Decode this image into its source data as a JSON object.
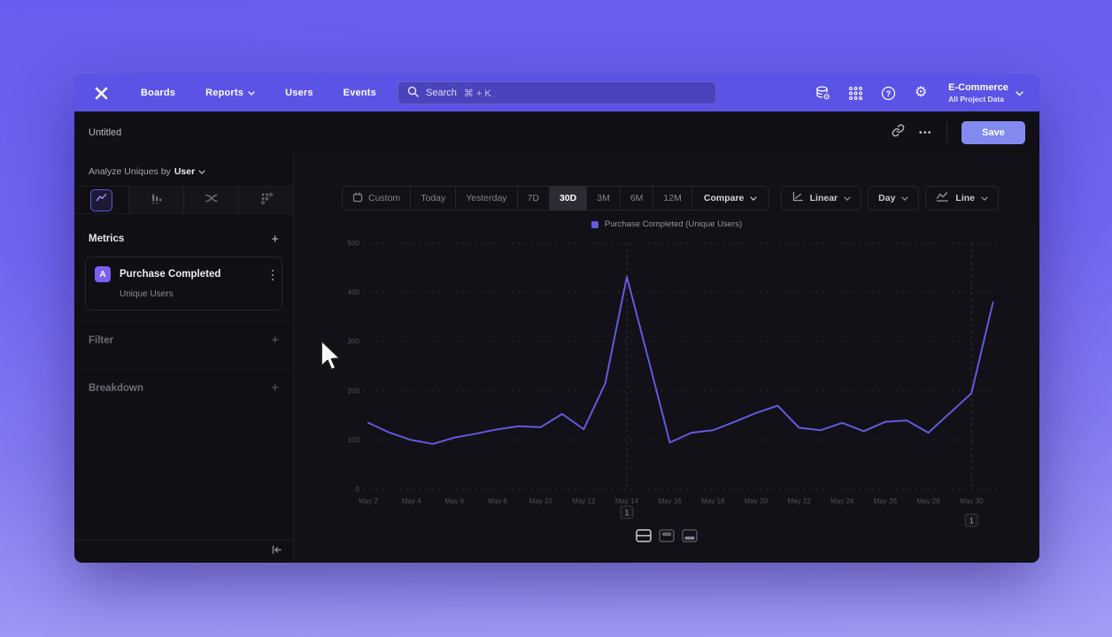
{
  "nav": {
    "items": [
      {
        "label": "Boards"
      },
      {
        "label": "Reports"
      },
      {
        "label": "Users"
      },
      {
        "label": "Events"
      }
    ],
    "search_placeholder": "Search",
    "search_shortcut": "⌘ + K",
    "project_name": "E-Commerce",
    "project_scope": "All Project Data"
  },
  "header": {
    "title": "Untitled",
    "more_label": "•••",
    "save_label": "Save"
  },
  "sidebar": {
    "analyze_prefix": "Analyze Uniques by",
    "analyze_value": "User",
    "metrics_label": "Metrics",
    "metrics_add": "+",
    "metric": {
      "badge": "A",
      "event": "Purchase Completed",
      "measure": "Unique Users"
    },
    "filter_label": "Filter",
    "filter_add": "+",
    "breakdown_label": "Breakdown",
    "breakdown_add": "+"
  },
  "toolbar": {
    "ranges": [
      "Custom",
      "Today",
      "Yesterday",
      "7D",
      "30D",
      "3M",
      "6M",
      "12M"
    ],
    "selected_range": "30D",
    "compare_label": "Compare",
    "scale_label": "Linear",
    "granularity_label": "Day",
    "chart_type_label": "Line"
  },
  "chart_data": {
    "type": "line",
    "legend": "Purchase Completed (Unique Users)",
    "line_color": "#6459dd",
    "x": [
      "May 2",
      "May 3",
      "May 4",
      "May 5",
      "May 6",
      "May 7",
      "May 8",
      "May 9",
      "May 10",
      "May 11",
      "May 12",
      "May 13",
      "May 14",
      "May 15",
      "May 16",
      "May 17",
      "May 18",
      "May 19",
      "May 20",
      "May 21",
      "May 22",
      "May 23",
      "May 24",
      "May 25",
      "May 26",
      "May 27",
      "May 28",
      "May 29",
      "May 30",
      "May 31"
    ],
    "values": [
      135,
      115,
      100,
      92,
      105,
      113,
      122,
      128,
      126,
      153,
      122,
      215,
      432,
      265,
      95,
      115,
      120,
      137,
      155,
      170,
      125,
      120,
      135,
      118,
      137,
      140,
      115,
      155,
      195,
      380
    ],
    "y_ticks": [
      0,
      100,
      200,
      300,
      400,
      500
    ],
    "ylim": [
      0,
      500
    ],
    "x_tick_every": 2,
    "grid": "dashed",
    "legend_position": "top-center",
    "annotations": [
      {
        "label": "1",
        "x": "May 14"
      },
      {
        "label": "1",
        "x": "May 30"
      }
    ]
  }
}
